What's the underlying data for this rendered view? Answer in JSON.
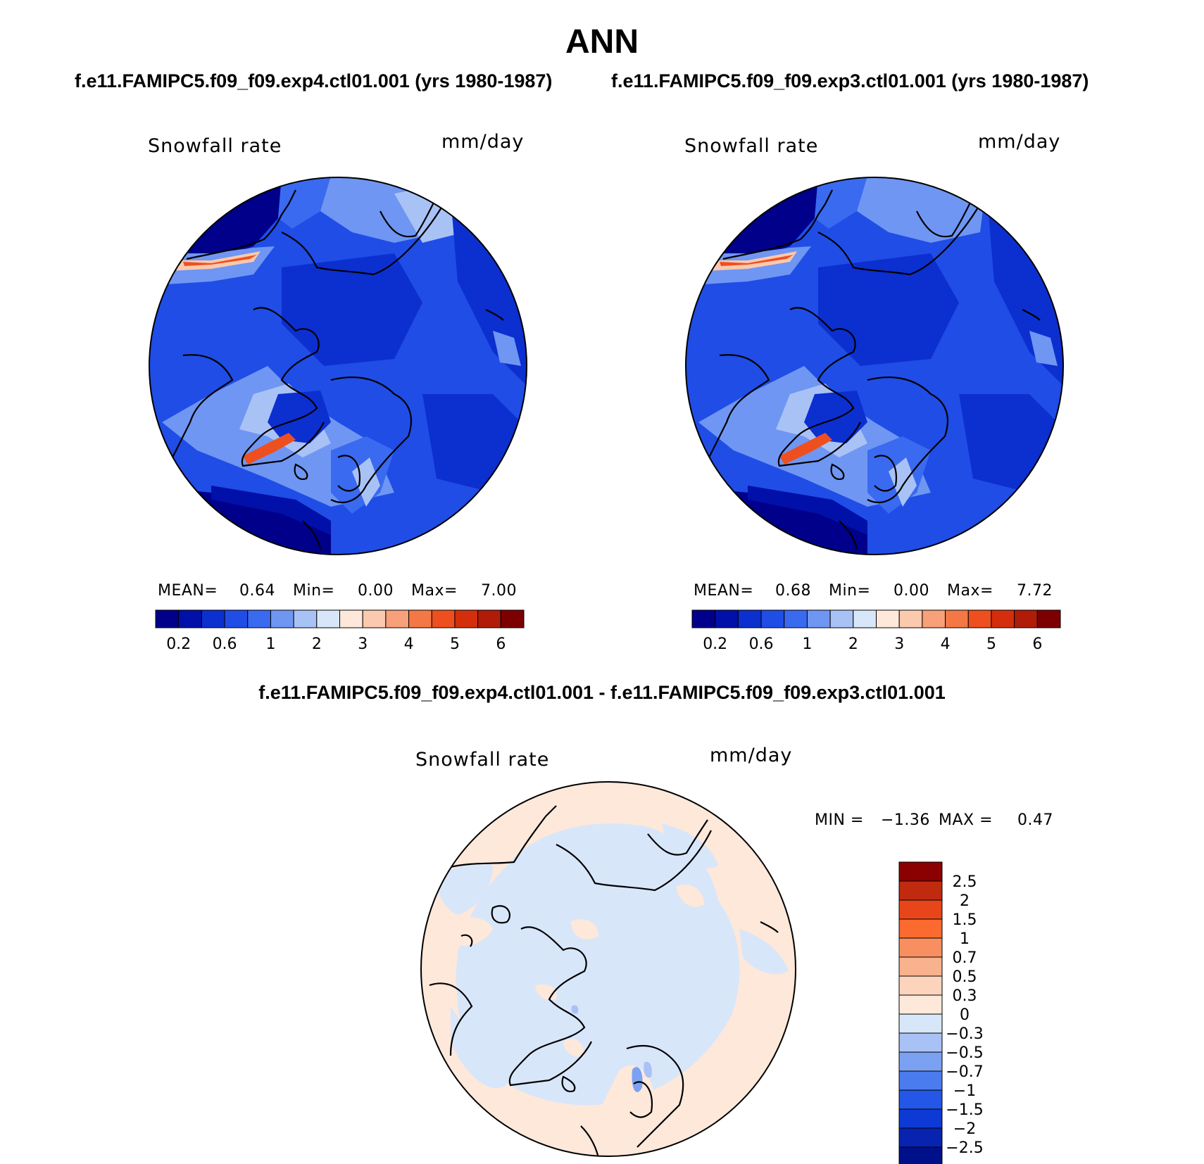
{
  "title": "ANN",
  "panels": [
    {
      "case": "f.e11.FAMIPC5.f09_f09.exp4.ctl01.001 (yrs 1980-1987)",
      "variable": "Snowfall rate",
      "units": "mm/day",
      "mean_label": "MEAN=",
      "mean": "0.64",
      "min_label": "Min=",
      "min": "0.00",
      "max_label": "Max=",
      "max": "7.00"
    },
    {
      "case": "f.e11.FAMIPC5.f09_f09.exp3.ctl01.001 (yrs 1980-1987)",
      "variable": "Snowfall rate",
      "units": "mm/day",
      "mean_label": "MEAN=",
      "mean": "0.68",
      "min_label": "Min=",
      "min": "0.00",
      "max_label": "Max=",
      "max": "7.72"
    }
  ],
  "colorbar": {
    "colors": [
      "#00008b",
      "#0010a8",
      "#0c2fd0",
      "#1f4de6",
      "#3a6af0",
      "#6f96f2",
      "#a9c2f6",
      "#d8e6fa",
      "#fde8da",
      "#fbc9ad",
      "#f7a07a",
      "#f47846",
      "#ee4f1f",
      "#d42e0c",
      "#b01c08",
      "#7d0000"
    ],
    "ticks": [
      "0.2",
      "0.6",
      "1",
      "2",
      "3",
      "4",
      "5",
      "6"
    ]
  },
  "difference": {
    "title": "f.e11.FAMIPC5.f09_f09.exp4.ctl01.001 - f.e11.FAMIPC5.f09_f09.exp3.ctl01.001",
    "variable": "Snowfall rate",
    "units": "mm/day",
    "min_label": "MIN =",
    "min": "−1.36",
    "max_label": "MAX =",
    "max": "0.47",
    "colorbar": {
      "colors": [
        "#8b0000",
        "#c02a0e",
        "#e8461a",
        "#fb6a2e",
        "#f88f60",
        "#f8b28e",
        "#fcd4bb",
        "#fde8da",
        "#d8e6fa",
        "#a9c2f6",
        "#7ba2f2",
        "#4a7cee",
        "#2457e8",
        "#0d3ad4",
        "#0823b0",
        "#00108b"
      ],
      "labels": [
        "2.5",
        "2",
        "1.5",
        "1",
        "0.7",
        "0.5",
        "0.3",
        "0",
        "−0.3",
        "−0.5",
        "−0.7",
        "−1",
        "−1.5",
        "−2",
        "−2.5"
      ]
    }
  }
}
